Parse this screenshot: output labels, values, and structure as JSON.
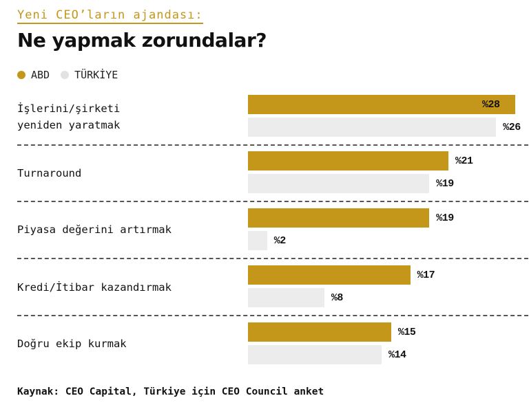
{
  "header": {
    "kicker": "Yeni CEO’ların ajandası:",
    "title": "Ne yapmak zorundalar?"
  },
  "colors": {
    "abd": "#c4961a",
    "turkiye": "#ececec"
  },
  "chart_data": {
    "type": "bar",
    "orientation": "horizontal",
    "title": "Ne yapmak zorundalar?",
    "legend": [
      "ABD",
      "TÜRKİYE"
    ],
    "legend_position": "top-left",
    "categories": [
      "İşlerini/şirketi yeniden yaratmak",
      "Turnaround",
      "Piyasa değerini artırmak",
      "Kredi/İtibar kazandırmak",
      "Doğru ekip kurmak"
    ],
    "series": [
      {
        "name": "ABD",
        "values": [
          28,
          21,
          19,
          17,
          15
        ]
      },
      {
        "name": "TÜRKİYE",
        "values": [
          26,
          19,
          2,
          8,
          14
        ]
      }
    ],
    "value_prefix": "%",
    "xlim": [
      0,
      28
    ]
  },
  "footer": "Kaynak: CEO Capital, Türkiye için CEO Council anket"
}
